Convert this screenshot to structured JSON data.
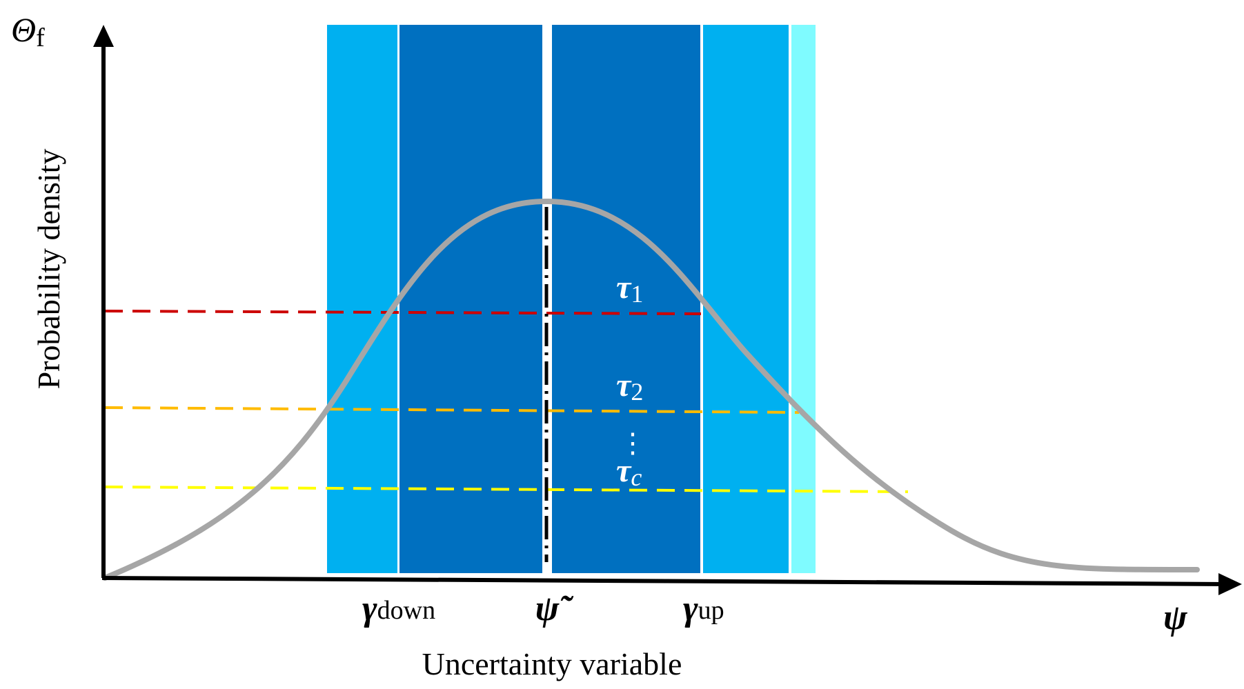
{
  "y_axis": {
    "symbol": "Θ",
    "subscript": "f",
    "title": "Probability density"
  },
  "x_axis": {
    "symbol": "ψ",
    "title": "Uncertainty variable"
  },
  "x_markers": [
    {
      "key": "down",
      "symbol": "γ",
      "subscript": "down"
    },
    {
      "key": "mean",
      "symbol": "ψ̃",
      "subscript": ""
    },
    {
      "key": "up",
      "symbol": "γ",
      "subscript": "up"
    }
  ],
  "thresholds": [
    {
      "symbol": "τ",
      "subscript": "1",
      "color": "#cc0000"
    },
    {
      "symbol": "τ",
      "subscript": "2",
      "color": "#ffbb00"
    },
    {
      "symbol": "τ",
      "subscript": "c",
      "color": "#ffff00"
    }
  ],
  "ellipsis": "⋮",
  "colors": {
    "curve": "#a6a6a6",
    "band_dark": "#0070c0",
    "band_mid": "#00b0f0",
    "band_light": "#7ffbff",
    "axis": "#000000"
  }
}
